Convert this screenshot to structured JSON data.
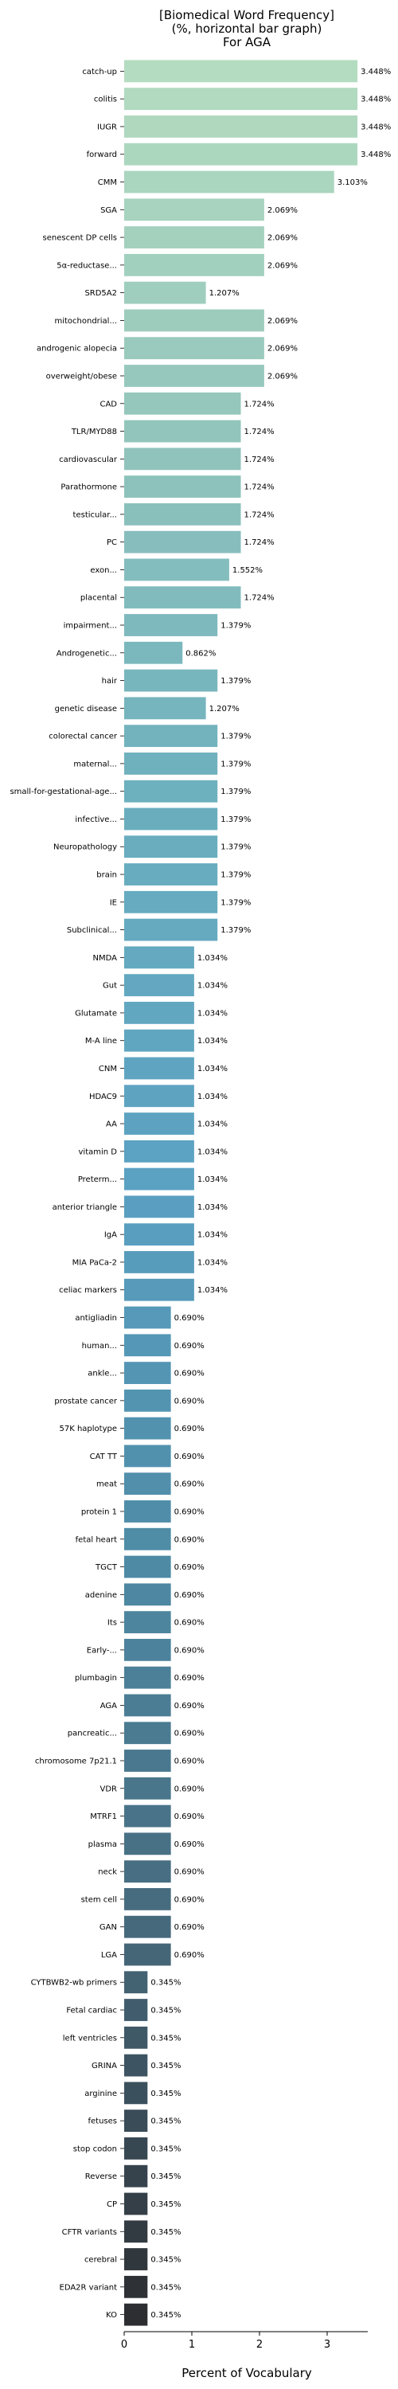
{
  "chart_data": {
    "type": "bar",
    "orientation": "horizontal",
    "title_lines": [
      "[Biomedical Word Frequency]",
      "(%, horizontal bar graph)",
      "For AGA"
    ],
    "xlabel": "Percent of Vocabulary",
    "ylabel": "",
    "xlim": [
      0,
      3.6
    ],
    "xticks": [
      0,
      1,
      2,
      3
    ],
    "grid": false,
    "legend": "none",
    "color_gradient": [
      "#b4dcc0",
      "#91c4bc",
      "#6aaebe",
      "#5aa0c2",
      "#4e8aa4",
      "#46687a",
      "#2c2e32"
    ],
    "categories": [
      "catch-up",
      "colitis",
      "IUGR",
      "forward",
      "CMM",
      "SGA",
      "senescent DP cells",
      "5α-reductase...",
      "SRD5A2",
      "mitochondrial...",
      "androgenic alopecia",
      "overweight/obese",
      "CAD",
      "TLR/MYD88",
      "cardiovascular",
      "Parathormone",
      "testicular...",
      "PC",
      "exon...",
      "placental",
      "impairment...",
      "Androgenetic...",
      "hair",
      "genetic disease",
      "colorectal cancer",
      "maternal...",
      "small-for-gestational-age...",
      "infective...",
      "Neuropathology",
      "brain",
      "IE",
      "Subclinical...",
      "NMDA",
      "Gut",
      "Glutamate",
      "M-A line",
      "CNM",
      "HDAC9",
      "AA",
      "vitamin D",
      "Preterm...",
      "anterior triangle",
      "IgA",
      "MIA PaCa-2",
      "celiac markers",
      "antigliadin",
      "human...",
      "ankle...",
      "prostate cancer",
      "57K haplotype",
      "CAT TT",
      "meat",
      "protein 1",
      "fetal heart",
      "TGCT",
      "adenine",
      "Its",
      "Early-...",
      "plumbagin",
      "AGA",
      "pancreatic...",
      "chromosome 7p21.1",
      "VDR",
      "MTRF1",
      "plasma",
      "neck",
      "stem cell",
      "GAN",
      "LGA",
      "CYTBWB2-wb primers",
      "Fetal cardiac",
      "left ventricles",
      "GRINA",
      "arginine",
      "fetuses",
      "stop codon",
      "Reverse",
      "CP",
      "CFTR variants",
      "cerebral",
      "EDA2R variant",
      "KO"
    ],
    "values": [
      3.448,
      3.448,
      3.448,
      3.448,
      3.103,
      2.069,
      2.069,
      2.069,
      1.207,
      2.069,
      2.069,
      2.069,
      1.724,
      1.724,
      1.724,
      1.724,
      1.724,
      1.724,
      1.552,
      1.724,
      1.379,
      0.862,
      1.379,
      1.207,
      1.379,
      1.379,
      1.379,
      1.379,
      1.379,
      1.379,
      1.379,
      1.379,
      1.034,
      1.034,
      1.034,
      1.034,
      1.034,
      1.034,
      1.034,
      1.034,
      1.034,
      1.034,
      1.034,
      1.034,
      1.034,
      0.69,
      0.69,
      0.69,
      0.69,
      0.69,
      0.69,
      0.69,
      0.69,
      0.69,
      0.69,
      0.69,
      0.69,
      0.69,
      0.69,
      0.69,
      0.69,
      0.69,
      0.69,
      0.69,
      0.69,
      0.69,
      0.69,
      0.69,
      0.69,
      0.345,
      0.345,
      0.345,
      0.345,
      0.345,
      0.345,
      0.345,
      0.345,
      0.345,
      0.345,
      0.345,
      0.345,
      0.345
    ],
    "value_labels": [
      "3.448%",
      "3.448%",
      "3.448%",
      "3.448%",
      "3.103%",
      "2.069%",
      "2.069%",
      "2.069%",
      "1.207%",
      "2.069%",
      "2.069%",
      "2.069%",
      "1.724%",
      "1.724%",
      "1.724%",
      "1.724%",
      "1.724%",
      "1.724%",
      "1.552%",
      "1.724%",
      "1.379%",
      "0.862%",
      "1.379%",
      "1.207%",
      "1.379%",
      "1.379%",
      "1.379%",
      "1.379%",
      "1.379%",
      "1.379%",
      "1.379%",
      "1.379%",
      "1.034%",
      "1.034%",
      "1.034%",
      "1.034%",
      "1.034%",
      "1.034%",
      "1.034%",
      "1.034%",
      "1.034%",
      "1.034%",
      "1.034%",
      "1.034%",
      "1.034%",
      "0.690%",
      "0.690%",
      "0.690%",
      "0.690%",
      "0.690%",
      "0.690%",
      "0.690%",
      "0.690%",
      "0.690%",
      "0.690%",
      "0.690%",
      "0.690%",
      "0.690%",
      "0.690%",
      "0.690%",
      "0.690%",
      "0.690%",
      "0.690%",
      "0.690%",
      "0.690%",
      "0.690%",
      "0.690%",
      "0.690%",
      "0.690%",
      "0.345%",
      "0.345%",
      "0.345%",
      "0.345%",
      "0.345%",
      "0.345%",
      "0.345%",
      "0.345%",
      "0.345%",
      "0.345%",
      "0.345%",
      "0.345%",
      "0.345%"
    ]
  }
}
